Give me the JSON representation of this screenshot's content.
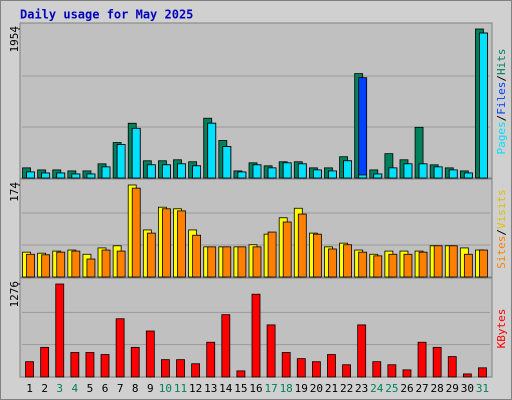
{
  "chart_data": {
    "type": "bar",
    "title": "Daily usage for May 2025",
    "categories": [
      "1",
      "2",
      "3",
      "4",
      "5",
      "6",
      "7",
      "8",
      "9",
      "10",
      "11",
      "12",
      "13",
      "14",
      "15",
      "16",
      "17",
      "18",
      "19",
      "20",
      "21",
      "22",
      "23",
      "24",
      "25",
      "26",
      "27",
      "28",
      "29",
      "30",
      "31"
    ],
    "category_colors": [
      "#000000",
      "#000000",
      "#00805c",
      "#00805c",
      "#000000",
      "#000000",
      "#000000",
      "#000000",
      "#000000",
      "#00805c",
      "#00805c",
      "#000000",
      "#000000",
      "#000000",
      "#000000",
      "#000000",
      "#00805c",
      "#00805c",
      "#000000",
      "#000000",
      "#000000",
      "#000000",
      "#000000",
      "#00805c",
      "#00805c",
      "#000000",
      "#000000",
      "#000000",
      "#000000",
      "#000000",
      "#00805c"
    ],
    "separator": "/",
    "panels": [
      {
        "ylim": [
          0,
          1954
        ],
        "yticks": [
          1954
        ],
        "series": [
          {
            "name": "Hits",
            "color": "#00805c",
            "values": [
              133,
              106,
              106,
              93,
              93,
              186,
              465,
              718,
              226,
              226,
              239,
              213,
              784,
              492,
              93,
              199,
              160,
              213,
              213,
              133,
              133,
              279,
              1369,
              106,
              319,
              239,
              665,
              173,
              133,
              93,
              1954
            ]
          },
          {
            "name": "Files",
            "color": "#0040ff",
            "values": [
              80,
              66,
              66,
              53,
              53,
              146,
              439,
              651,
              173,
              173,
              186,
              160,
              718,
              412,
              80,
              173,
              133,
              199,
              186,
              106,
              93,
              226,
              1316,
              53,
              133,
              186,
              186,
              146,
              106,
              66,
              1901
            ]
          },
          {
            "name": "Pages",
            "color": "#00e0ff",
            "values": [
              80,
              66,
              66,
              53,
              53,
              146,
              439,
              651,
              173,
              173,
              186,
              160,
              718,
              412,
              80,
              173,
              133,
              199,
              186,
              106,
              93,
              226,
              40,
              53,
              133,
              186,
              186,
              146,
              106,
              66,
              1901
            ]
          }
        ]
      },
      {
        "ylim": [
          0,
          174
        ],
        "yticks": [
          174
        ],
        "series": [
          {
            "name": "Visits",
            "color": "#ffff00",
            "values": [
              47,
              45,
              49,
              51,
              43,
              55,
              59,
              174,
              89,
              132,
              129,
              89,
              57,
              57,
              57,
              61,
              81,
              112,
              130,
              83,
              57,
              64,
              51,
              43,
              49,
              49,
              49,
              59,
              59,
              55,
              51
            ]
          },
          {
            "name": "Sites",
            "color": "#ff8000",
            "values": [
              43,
              42,
              47,
              49,
              34,
              51,
              49,
              168,
              83,
              129,
              125,
              79,
              57,
              57,
              57,
              57,
              85,
              104,
              119,
              81,
              53,
              61,
              47,
              40,
              43,
              43,
              47,
              59,
              59,
              43,
              51
            ]
          }
        ]
      },
      {
        "ylim": [
          0,
          1276
        ],
        "yticks": [
          1276
        ],
        "series": [
          {
            "name": "KBytes",
            "color": "#ff0000",
            "values": [
              210,
              407,
              1276,
              336,
              336,
              308,
              799,
              407,
              631,
              238,
              238,
              182,
              477,
              855,
              84,
              1136,
              715,
              336,
              252,
              210,
              308,
              168,
              715,
              210,
              168,
              98,
              477,
              407,
              280,
              42,
              126
            ]
          }
        ]
      }
    ]
  }
}
